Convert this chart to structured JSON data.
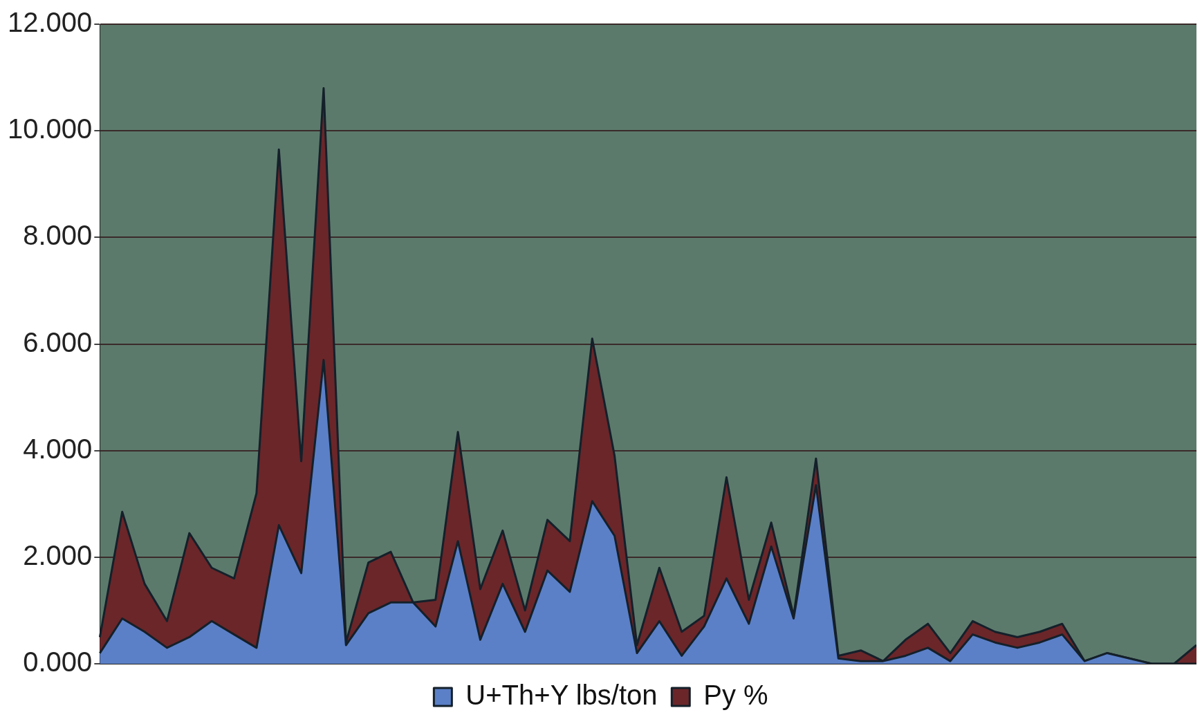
{
  "chart_data": {
    "type": "area",
    "stacked": true,
    "categories": [
      null,
      null,
      null,
      null,
      null,
      null,
      null,
      null,
      null,
      null,
      null,
      null,
      null,
      null,
      null,
      null,
      null,
      null,
      null,
      null,
      null,
      null,
      null,
      null,
      null,
      null,
      null,
      null,
      null,
      null,
      null,
      null,
      null,
      null,
      null,
      null,
      null,
      null,
      null,
      null,
      null,
      null,
      null,
      null,
      null,
      null,
      null,
      null,
      null,
      null
    ],
    "series": [
      {
        "name": "U+Th+Y lbs/ton",
        "color": "#5b80c8",
        "values": [
          0.2,
          0.85,
          0.6,
          0.3,
          0.5,
          0.8,
          0.55,
          0.3,
          2.6,
          1.7,
          5.7,
          0.35,
          0.95,
          1.15,
          1.15,
          0.7,
          2.3,
          0.45,
          1.5,
          0.6,
          1.75,
          1.35,
          3.05,
          2.4,
          0.2,
          0.8,
          0.15,
          0.7,
          1.6,
          0.75,
          2.2,
          0.85,
          3.35,
          0.1,
          0.05,
          0.05,
          0.15,
          0.3,
          0.05,
          0.55,
          0.4,
          0.3,
          0.4,
          0.55,
          0.05,
          0.2,
          0.1,
          0,
          0,
          0
        ]
      },
      {
        "name": "Py %",
        "color": "#6b2629",
        "values": [
          0.3,
          2.0,
          0.9,
          0.5,
          1.95,
          1.0,
          1.05,
          2.9,
          7.05,
          2.1,
          5.1,
          0.05,
          0.95,
          0.95,
          0,
          0.5,
          2.05,
          0.95,
          1.0,
          0.4,
          0.95,
          0.95,
          3.05,
          1.5,
          0.15,
          1.0,
          0.45,
          0.2,
          1.9,
          0.45,
          0.45,
          0.05,
          0.5,
          0.05,
          0.2,
          0,
          0.3,
          0.45,
          0.15,
          0.25,
          0.2,
          0.2,
          0.2,
          0.2,
          0,
          0,
          0,
          0,
          0,
          0.35
        ]
      }
    ],
    "ylim": [
      0,
      12
    ],
    "yticks": [
      {
        "value": 0,
        "label": "0.000"
      },
      {
        "value": 2,
        "label": "2.000"
      },
      {
        "value": 4,
        "label": "4.000"
      },
      {
        "value": 6,
        "label": "6.000"
      },
      {
        "value": 8,
        "label": "8.000"
      },
      {
        "value": 10,
        "label": "10.000"
      },
      {
        "value": 12,
        "label": "12.000"
      }
    ],
    "grid": "y",
    "legend": "bottom",
    "tick_labels": "y"
  }
}
